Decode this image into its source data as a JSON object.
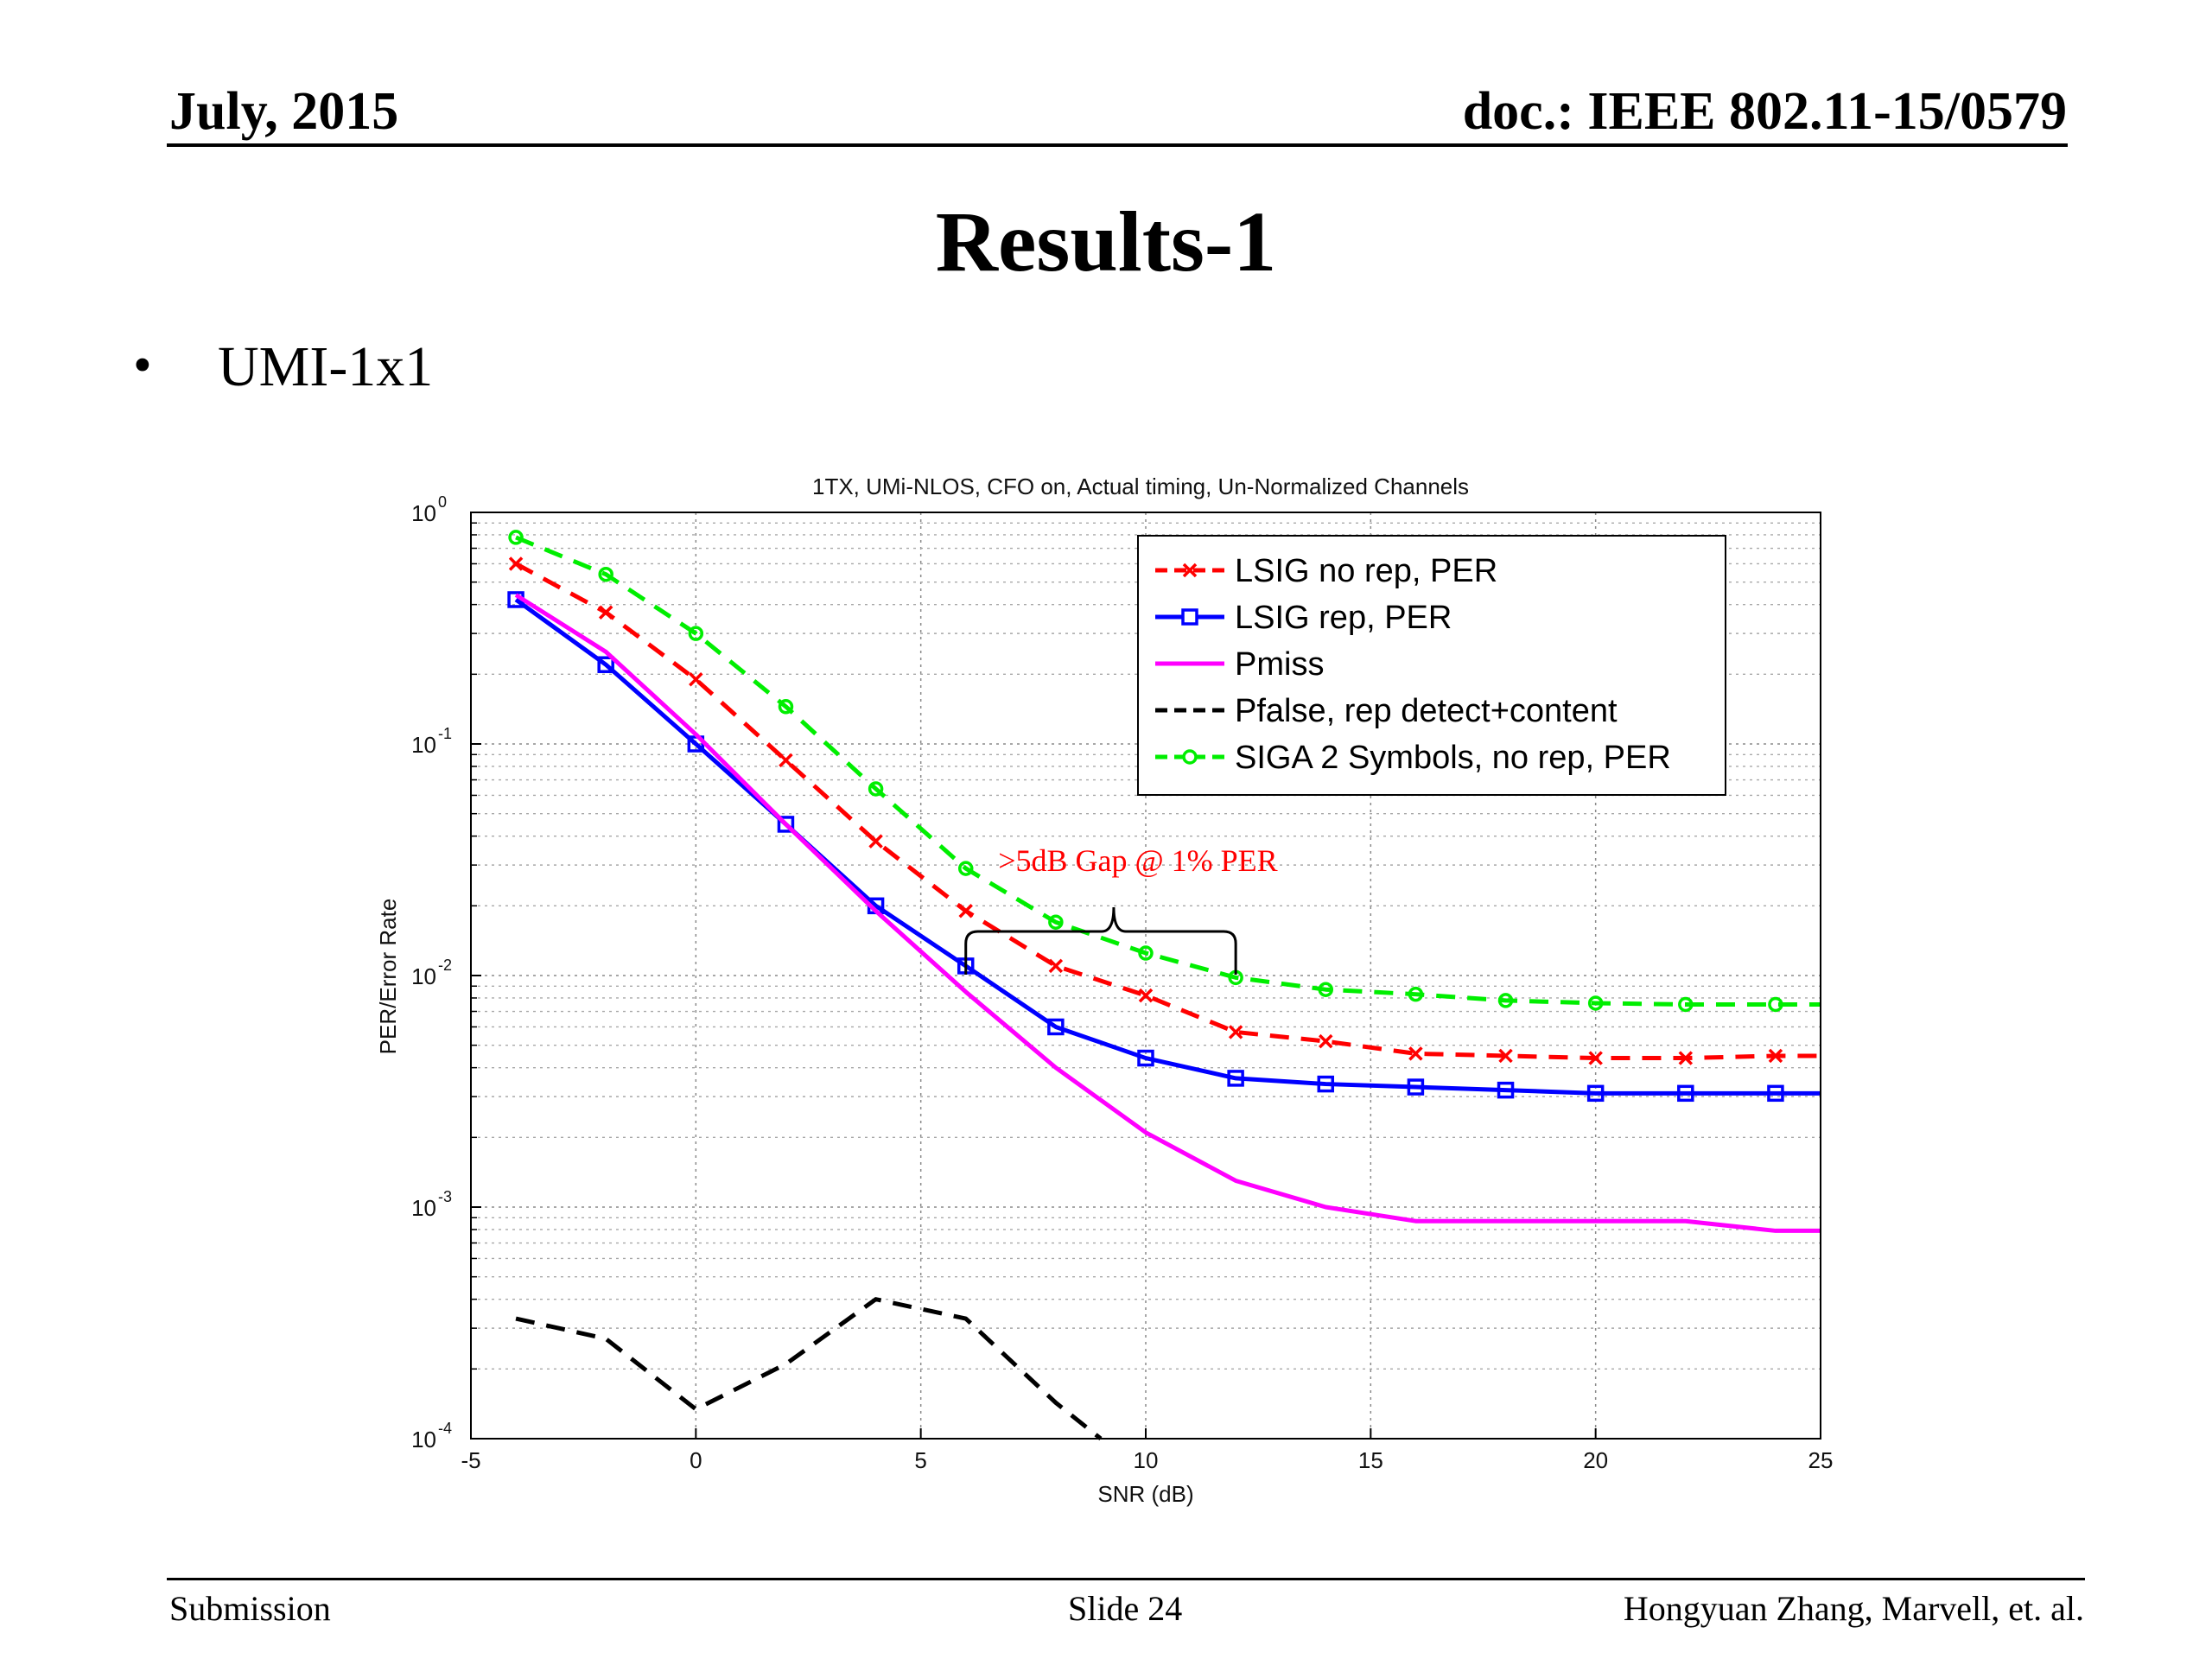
{
  "header": {
    "left": "July, 2015",
    "right": "doc.: IEEE 802.11-15/0579"
  },
  "slide": {
    "title": "Results-1",
    "bullet": "UMI-1x1"
  },
  "footer": {
    "left": "Submission",
    "center": "Slide 24",
    "right": "Hongyuan Zhang,  Marvell, et. al."
  },
  "colors": {
    "lsig_no_rep": "#ff0000",
    "lsig_rep": "#0000ff",
    "pmiss": "#ff00ff",
    "pfalse": "#000000",
    "siga": "#00ee00",
    "annotation": "#ff0000"
  },
  "chart_data": {
    "type": "line",
    "title": "1TX, UMi-NLOS, CFO on, Actual timing, Un-Normalized Channels",
    "xlabel": "SNR (dB)",
    "ylabel": "PER/Error Rate",
    "xlim": [
      -5,
      25
    ],
    "ylim": [
      0.0001,
      1
    ],
    "yscale": "log",
    "grid": true,
    "legend_position": "top-right",
    "x_ticks": [
      "-5",
      "0",
      "5",
      "10",
      "15",
      "20",
      "25"
    ],
    "y_ticks": [
      {
        "base": "10",
        "exp": "0"
      },
      {
        "base": "10",
        "exp": "-1"
      },
      {
        "base": "10",
        "exp": "-2"
      },
      {
        "base": "10",
        "exp": "-3"
      },
      {
        "base": "10",
        "exp": "-4"
      }
    ],
    "annotation": {
      "text": ">5dB Gap  @ 1% PER",
      "from_x": 6,
      "to_x": 12,
      "y": 0.01
    },
    "series": [
      {
        "name": "LSIG no rep, PER",
        "style": "dashed",
        "marker": "x",
        "color_key": "lsig_no_rep",
        "x": [
          -4,
          -2,
          0,
          2,
          4,
          6,
          8,
          10,
          12,
          14,
          16,
          18,
          20,
          22,
          24,
          25
        ],
        "y": [
          0.6,
          0.37,
          0.19,
          0.085,
          0.038,
          0.019,
          0.011,
          0.0082,
          0.0057,
          0.0052,
          0.0046,
          0.0045,
          0.0044,
          0.0044,
          0.0045,
          0.0045
        ]
      },
      {
        "name": "LSIG rep, PER",
        "style": "solid",
        "marker": "square",
        "color_key": "lsig_rep",
        "x": [
          -4,
          -2,
          0,
          2,
          4,
          6,
          8,
          10,
          12,
          14,
          16,
          18,
          20,
          22,
          24,
          25
        ],
        "y": [
          0.42,
          0.22,
          0.1,
          0.045,
          0.02,
          0.011,
          0.006,
          0.0044,
          0.0036,
          0.0034,
          0.0033,
          0.0032,
          0.0031,
          0.0031,
          0.0031,
          0.0031
        ]
      },
      {
        "name": "Pmiss",
        "style": "solid",
        "marker": "none",
        "color_key": "pmiss",
        "x": [
          -4,
          -2,
          0,
          2,
          4,
          6,
          8,
          10,
          12,
          14,
          16,
          18,
          20,
          22,
          24,
          25
        ],
        "y": [
          0.44,
          0.25,
          0.11,
          0.045,
          0.019,
          0.0085,
          0.004,
          0.0021,
          0.0013,
          0.001,
          0.00087,
          0.00087,
          0.00087,
          0.00087,
          0.00079,
          0.00079
        ]
      },
      {
        "name": "Pfalse, rep detect+content",
        "style": "dashed",
        "marker": "none",
        "color_key": "pfalse",
        "x": [
          -4,
          -2,
          0,
          2,
          4,
          6,
          8,
          9
        ],
        "y": [
          0.00033,
          0.00027,
          0.000134,
          0.00021,
          0.0004,
          0.00033,
          0.000143,
          0.0001
        ]
      },
      {
        "name": "SIGA 2 Symbols, no rep, PER",
        "style": "dashed",
        "marker": "circle",
        "color_key": "siga",
        "x": [
          -4,
          -2,
          0,
          2,
          4,
          6,
          8,
          10,
          12,
          14,
          16,
          18,
          20,
          22,
          24,
          25
        ],
        "y": [
          0.78,
          0.54,
          0.3,
          0.145,
          0.064,
          0.029,
          0.017,
          0.0125,
          0.0098,
          0.0087,
          0.0083,
          0.0078,
          0.0076,
          0.0075,
          0.0075,
          0.0075
        ]
      }
    ]
  }
}
